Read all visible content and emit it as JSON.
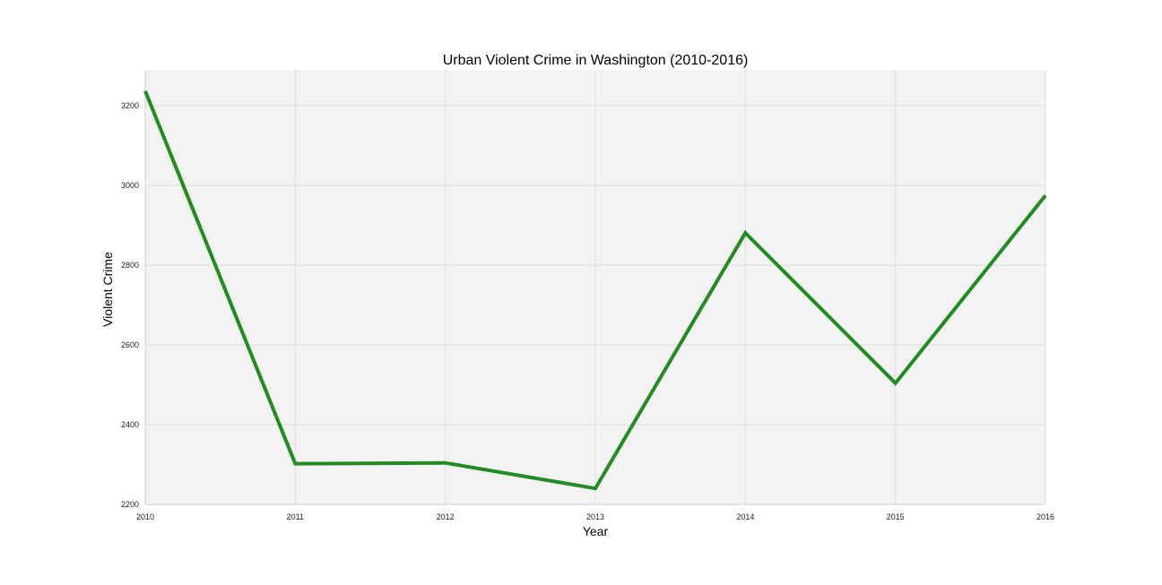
{
  "chart_data": {
    "type": "line",
    "title": "Urban Violent Crime in Washington (2010-2016)",
    "xlabel": "Year",
    "ylabel": "Violent Crime",
    "x": [
      2010,
      2011,
      2012,
      2013,
      2014,
      2015,
      2016
    ],
    "xlim": [
      2010,
      2016
    ],
    "ylim": [
      2200,
      3290
    ],
    "x_ticks": [
      "2010",
      "2011",
      "2012",
      "2013",
      "2014",
      "2015",
      "2016"
    ],
    "y_ticks": [
      2200,
      2400,
      2600,
      2800,
      3000,
      3200
    ],
    "grid": true,
    "series": [
      {
        "values": [
          3237,
          2302,
          2304,
          2240,
          2881,
          2504,
          2975
        ],
        "color": "#228b22"
      }
    ]
  },
  "colors": {
    "plot_background": "#f3f3f3",
    "grid": "#dddddd"
  }
}
